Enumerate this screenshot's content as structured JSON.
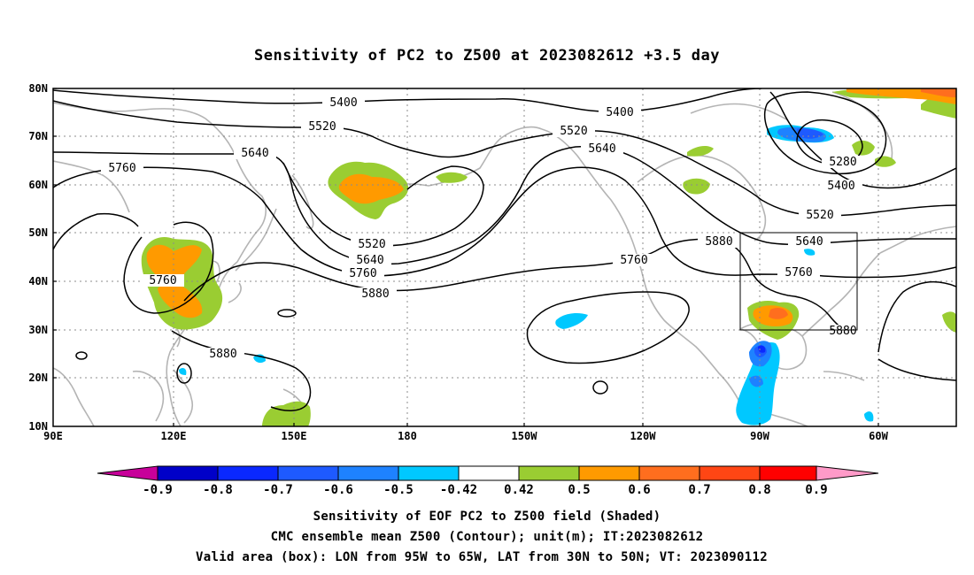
{
  "title": "Sensitivity of PC2 to Z500 at 2023082612 +3.5 day",
  "map": {
    "lat_labels": [
      "80N",
      "70N",
      "60N",
      "50N",
      "40N",
      "30N",
      "20N",
      "10N"
    ],
    "lon_labels": [
      "90E",
      "120E",
      "150E",
      "180",
      "150W",
      "120W",
      "90W",
      "60W"
    ],
    "contour_labels": [
      {
        "text": "5400",
        "id": "c5400a"
      },
      {
        "text": "5400",
        "id": "c5400b"
      },
      {
        "text": "5400",
        "id": "c5400c"
      },
      {
        "text": "5520",
        "id": "c5520a"
      },
      {
        "text": "5520",
        "id": "c5520b"
      },
      {
        "text": "5520",
        "id": "c5520c"
      },
      {
        "text": "5520",
        "id": "c5520d"
      },
      {
        "text": "5640",
        "id": "c5640a"
      },
      {
        "text": "5640",
        "id": "c5640b"
      },
      {
        "text": "5640",
        "id": "c5640c"
      },
      {
        "text": "5640",
        "id": "c5640d"
      },
      {
        "text": "5760",
        "id": "c5760a"
      },
      {
        "text": "5760",
        "id": "c5760b"
      },
      {
        "text": "5760",
        "id": "c5760c"
      },
      {
        "text": "5760",
        "id": "c5760d"
      },
      {
        "text": "5760",
        "id": "c5760e"
      },
      {
        "text": "5880",
        "id": "c5880a"
      },
      {
        "text": "5880",
        "id": "c5880b"
      },
      {
        "text": "5880",
        "id": "c5880c"
      },
      {
        "text": "5880",
        "id": "c5880d"
      },
      {
        "text": "5280",
        "id": "c5280a"
      }
    ],
    "valid_box": {
      "lon_from": "95W",
      "lon_to": "65W",
      "lat_from": "30N",
      "lat_to": "50N"
    }
  },
  "colorbar": {
    "labels": [
      "-0.9",
      "-0.8",
      "-0.7",
      "-0.6",
      "-0.5",
      "-0.42",
      "0.42",
      "0.5",
      "0.6",
      "0.7",
      "0.8",
      "0.9"
    ],
    "colors": {
      "under": "#c8009a",
      "neg": [
        "#0000c8",
        "#0a28ff",
        "#1e5aff",
        "#1e82ff",
        "#00c8ff"
      ],
      "neutral": "#ffffff",
      "pos": [
        "#9acd32",
        "#ff9a00",
        "#ff6e1e",
        "#ff4614",
        "#ff0000"
      ],
      "over": "#ff9ac8"
    }
  },
  "footer": {
    "line1": "Sensitivity of EOF PC2 to Z500 field (Shaded)",
    "line2": "CMC ensemble mean Z500 (Contour); unit(m); IT:2023082612",
    "line3": "Valid area (box): LON from 95W to 65W, LAT from 30N to 50N; VT: 2023090112"
  }
}
